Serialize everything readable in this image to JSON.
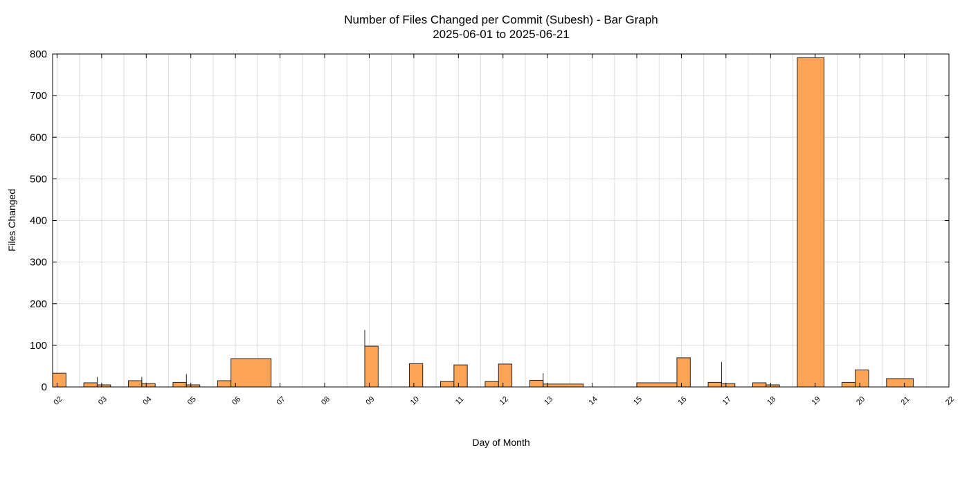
{
  "chart_data": {
    "type": "bar",
    "title": "Number of Files Changed per Commit (Subesh) - Bar Graph",
    "subtitle": "2025-06-01 to 2025-06-21",
    "xlabel": "Day of Month",
    "ylabel": "Files Changed",
    "xlim": [
      1.9,
      22
    ],
    "ylim": [
      0,
      800
    ],
    "xticks": [
      "02",
      "03",
      "04",
      "05",
      "06",
      "07",
      "08",
      "09",
      "10",
      "11",
      "12",
      "13",
      "14",
      "15",
      "16",
      "17",
      "18",
      "19",
      "20",
      "21",
      "22"
    ],
    "yticks": [
      0,
      100,
      200,
      300,
      400,
      500,
      600,
      700,
      800
    ],
    "grid": true,
    "colors": {
      "bar": "#fba455",
      "edge": "#222222",
      "grid": "#dddddd"
    },
    "bars": [
      {
        "x0": 1.9,
        "x1": 2.2,
        "value": 33
      },
      {
        "x0": 2.6,
        "x1": 2.9,
        "value": 10
      },
      {
        "x0": 2.9,
        "x1": 3.2,
        "value": 5
      },
      {
        "x0": 3.6,
        "x1": 3.9,
        "value": 15
      },
      {
        "x0": 3.9,
        "x1": 4.2,
        "value": 8
      },
      {
        "x0": 4.6,
        "x1": 4.9,
        "value": 11
      },
      {
        "x0": 4.9,
        "x1": 5.2,
        "value": 5
      },
      {
        "x0": 5.6,
        "x1": 5.9,
        "value": 15
      },
      {
        "x0": 5.9,
        "x1": 6.8,
        "value": 68
      },
      {
        "x0": 8.9,
        "x1": 9.2,
        "value": 98
      },
      {
        "x0": 9.9,
        "x1": 10.2,
        "value": 56
      },
      {
        "x0": 10.6,
        "x1": 10.9,
        "value": 13
      },
      {
        "x0": 10.9,
        "x1": 11.2,
        "value": 53
      },
      {
        "x0": 11.6,
        "x1": 11.9,
        "value": 13
      },
      {
        "x0": 11.9,
        "x1": 12.2,
        "value": 55
      },
      {
        "x0": 12.6,
        "x1": 12.9,
        "value": 16
      },
      {
        "x0": 12.9,
        "x1": 13.8,
        "value": 7
      },
      {
        "x0": 15.0,
        "x1": 15.9,
        "value": 10
      },
      {
        "x0": 15.9,
        "x1": 16.2,
        "value": 70
      },
      {
        "x0": 16.6,
        "x1": 16.9,
        "value": 11
      },
      {
        "x0": 16.9,
        "x1": 17.2,
        "value": 8
      },
      {
        "x0": 17.6,
        "x1": 17.9,
        "value": 10
      },
      {
        "x0": 17.9,
        "x1": 18.2,
        "value": 5
      },
      {
        "x0": 18.6,
        "x1": 19.2,
        "value": 791
      },
      {
        "x0": 19.6,
        "x1": 19.9,
        "value": 11
      },
      {
        "x0": 19.9,
        "x1": 20.2,
        "value": 41
      },
      {
        "x0": 20.6,
        "x1": 21.2,
        "value": 20
      }
    ],
    "spikes": [
      {
        "x": 2.9,
        "value": 24
      },
      {
        "x": 3.9,
        "value": 24
      },
      {
        "x": 4.9,
        "value": 31
      },
      {
        "x": 8.9,
        "value": 137
      },
      {
        "x": 12.9,
        "value": 33
      },
      {
        "x": 16.9,
        "value": 60
      }
    ]
  }
}
